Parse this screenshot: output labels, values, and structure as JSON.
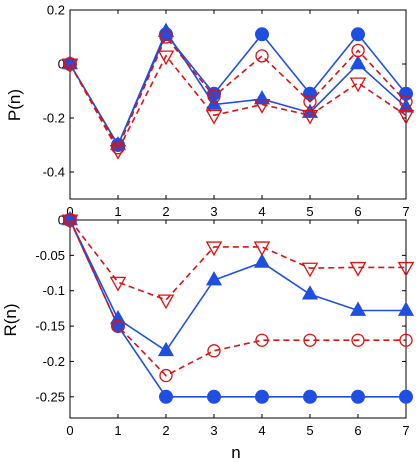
{
  "chart_data": [
    {
      "type": "line",
      "ylabel": "P(n)",
      "xlabel": "",
      "x": [
        0,
        1,
        2,
        3,
        4,
        5,
        6,
        7
      ],
      "xlim": [
        0,
        7
      ],
      "ylim": [
        -0.5,
        0.2
      ],
      "xticks": [
        "0",
        "1",
        "2",
        "3",
        "4",
        "5",
        "6",
        "7"
      ],
      "yticks": [
        {
          "value": 0.2,
          "label": "0.2"
        },
        {
          "value": 0,
          "label": "0"
        },
        {
          "value": -0.2,
          "label": "-0.2"
        },
        {
          "value": -0.4,
          "label": "-0.4"
        }
      ],
      "grid": false,
      "series": [
        {
          "marker": "filled-circle",
          "color": "#1f4fe0",
          "dash": "solid",
          "values": [
            0,
            -0.3,
            0.11,
            -0.11,
            0.11,
            -0.11,
            0.11,
            -0.11
          ]
        },
        {
          "marker": "filled-triangle-up",
          "color": "#1f4fe0",
          "dash": "solid",
          "values": [
            0,
            -0.3,
            0.12,
            -0.15,
            -0.13,
            -0.18,
            0.0,
            -0.16
          ]
        },
        {
          "marker": "open-circle",
          "color": "#e01010",
          "dash": "dashed",
          "values": [
            0,
            -0.31,
            0.1,
            -0.12,
            0.03,
            -0.14,
            0.05,
            -0.14
          ]
        },
        {
          "marker": "open-triangle-down",
          "color": "#e01010",
          "dash": "dashed",
          "values": [
            0,
            -0.32,
            0.03,
            -0.19,
            -0.15,
            -0.19,
            -0.07,
            -0.19
          ]
        }
      ]
    },
    {
      "type": "line",
      "ylabel": "R(n)",
      "xlabel": "n",
      "x": [
        0,
        1,
        2,
        3,
        4,
        5,
        6,
        7
      ],
      "xlim": [
        0,
        7
      ],
      "ylim": [
        -0.28,
        0
      ],
      "xticks": [
        "0",
        "1",
        "2",
        "3",
        "4",
        "5",
        "6",
        "7"
      ],
      "yticks": [
        {
          "value": 0,
          "label": "0"
        },
        {
          "value": -0.05,
          "label": "-0.05"
        },
        {
          "value": -0.1,
          "label": "-0.1"
        },
        {
          "value": -0.15,
          "label": "-0.15"
        },
        {
          "value": -0.2,
          "label": "-0.2"
        },
        {
          "value": -0.25,
          "label": "-0.25"
        }
      ],
      "grid": false,
      "series": [
        {
          "marker": "filled-circle",
          "color": "#1f4fe0",
          "dash": "solid",
          "values": [
            0,
            -0.15,
            -0.25,
            -0.25,
            -0.25,
            -0.25,
            -0.25,
            -0.25
          ]
        },
        {
          "marker": "filled-triangle-up",
          "color": "#1f4fe0",
          "dash": "solid",
          "values": [
            0,
            -0.14,
            -0.185,
            -0.085,
            -0.06,
            -0.105,
            -0.128,
            -0.128
          ]
        },
        {
          "marker": "open-circle",
          "color": "#e01010",
          "dash": "dashed",
          "values": [
            0,
            -0.15,
            -0.22,
            -0.185,
            -0.17,
            -0.17,
            -0.17,
            -0.17
          ]
        },
        {
          "marker": "open-triangle-down",
          "color": "#e01010",
          "dash": "dashed",
          "values": [
            0,
            -0.088,
            -0.113,
            -0.038,
            -0.038,
            -0.068,
            -0.067,
            -0.067
          ]
        }
      ]
    }
  ]
}
